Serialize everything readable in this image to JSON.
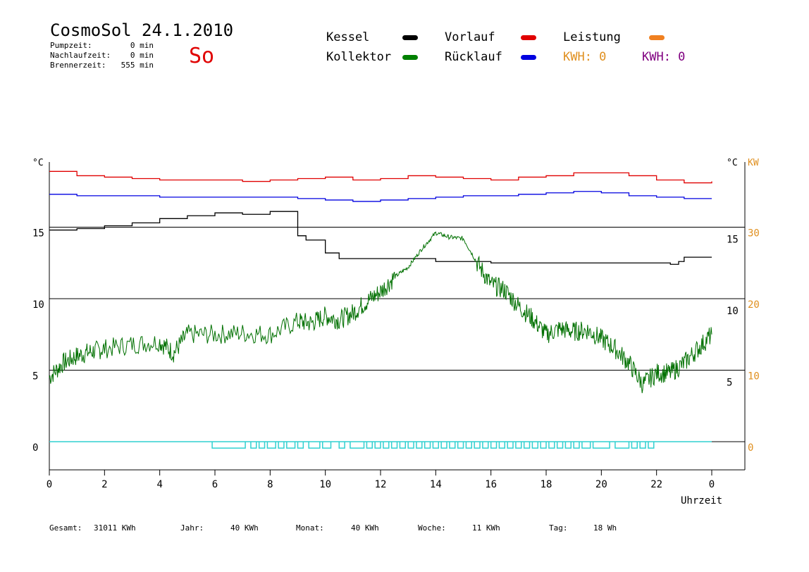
{
  "header": {
    "title": "CosmoSol 24.1.2010",
    "day_label": "So",
    "stats": [
      {
        "label": "Pumpzeit:",
        "value": "0 min"
      },
      {
        "label": "Nachlaufzeit:",
        "value": "0 min"
      },
      {
        "label": "Brennerzeit:",
        "value": "555 min"
      }
    ]
  },
  "legend": {
    "kessel": {
      "label": "Kessel",
      "color": "#000000"
    },
    "kollektor": {
      "label": "Kollektor",
      "color": "#008000"
    },
    "vorlauf": {
      "label": "Vorlauf",
      "color": "#e00000"
    },
    "ruecklauf": {
      "label": "Rücklauf",
      "color": "#0000e0"
    },
    "leistung": {
      "label": "Leistung",
      "color": "#f08020"
    },
    "kwh1": {
      "text": "KWH: 0",
      "color": "#e09020"
    },
    "kwh2": {
      "text": "KWH: 0",
      "color": "#800080"
    }
  },
  "footer": [
    {
      "label": "Gesamt:",
      "value": "31011 KWh"
    },
    {
      "label": "Jahr:",
      "value": "40 KWh"
    },
    {
      "label": "Monat:",
      "value": "40 KWh"
    },
    {
      "label": "Woche:",
      "value": "11 KWh"
    },
    {
      "label": "Tag:",
      "value": "18 Wh"
    }
  ],
  "chart_data": {
    "type": "line",
    "xlabel": "Uhrzeit",
    "x_ticks": [
      "0",
      "2",
      "4",
      "6",
      "8",
      "10",
      "12",
      "14",
      "16",
      "18",
      "20",
      "22",
      "0"
    ],
    "xlim": [
      0,
      24
    ],
    "y_left": {
      "unit": "°C",
      "ticks": [
        "0",
        "5",
        "10",
        "15"
      ],
      "ylim": [
        -1.5,
        20
      ]
    },
    "y_right": {
      "unit": "°C",
      "ticks": [
        "5",
        "10",
        "15"
      ]
    },
    "y_right_kw": {
      "unit": "KW",
      "ticks": [
        "0",
        "10",
        "20",
        "30"
      ],
      "color": "#e09020"
    },
    "gridlines_y": [
      0,
      5,
      10,
      15
    ],
    "series": [
      {
        "name": "Vorlauf",
        "color": "#e00000",
        "x": [
          0,
          1,
          2,
          3,
          4,
          5,
          6,
          7,
          8,
          9,
          10,
          11,
          12,
          13,
          14,
          15,
          16,
          17,
          18,
          19,
          20,
          21,
          22,
          23,
          24
        ],
        "y": [
          18.9,
          18.6,
          18.5,
          18.4,
          18.3,
          18.3,
          18.3,
          18.2,
          18.3,
          18.4,
          18.5,
          18.3,
          18.4,
          18.6,
          18.5,
          18.4,
          18.3,
          18.5,
          18.6,
          18.8,
          18.8,
          18.6,
          18.3,
          18.1,
          18.2
        ]
      },
      {
        "name": "Rücklauf",
        "color": "#0000e0",
        "x": [
          0,
          1,
          2,
          3,
          4,
          5,
          6,
          7,
          8,
          9,
          10,
          11,
          12,
          13,
          14,
          15,
          16,
          17,
          18,
          19,
          20,
          21,
          22,
          23,
          24
        ],
        "y": [
          17.3,
          17.2,
          17.2,
          17.2,
          17.1,
          17.1,
          17.1,
          17.1,
          17.1,
          17.0,
          16.9,
          16.8,
          16.9,
          17.0,
          17.1,
          17.2,
          17.2,
          17.3,
          17.4,
          17.5,
          17.4,
          17.2,
          17.1,
          17.0,
          17.0
        ]
      },
      {
        "name": "Kessel",
        "color": "#000000",
        "x": [
          0,
          1,
          2,
          3,
          4,
          5,
          6,
          7,
          8,
          8.6,
          9.0,
          9.3,
          10,
          10.5,
          11,
          12,
          13,
          14,
          15,
          16,
          17,
          18,
          19,
          20,
          21,
          22,
          22.5,
          22.8,
          23,
          24
        ],
        "y": [
          14.8,
          14.9,
          15.1,
          15.3,
          15.6,
          15.8,
          16.0,
          15.9,
          16.1,
          16.1,
          14.4,
          14.1,
          13.2,
          12.8,
          12.8,
          12.8,
          12.8,
          12.6,
          12.6,
          12.5,
          12.5,
          12.5,
          12.5,
          12.5,
          12.5,
          12.5,
          12.4,
          12.6,
          12.9,
          12.9
        ]
      },
      {
        "name": "Kollektor",
        "color": "#007000",
        "x": [
          0,
          0.5,
          1,
          1.5,
          2,
          3,
          4,
          4.5,
          5,
          6,
          7,
          8,
          9,
          9.5,
          10,
          10.5,
          11,
          11.5,
          12,
          12.5,
          13,
          13.5,
          14,
          14.5,
          15,
          15.5,
          16,
          16.5,
          17,
          17.5,
          18,
          18.5,
          19,
          19.5,
          20,
          20.5,
          21,
          21.5,
          22,
          22.5,
          23,
          23.5,
          24
        ],
        "y": [
          4.5,
          5.5,
          6.0,
          6.3,
          6.5,
          6.8,
          7.0,
          6.2,
          7.5,
          7.5,
          7.6,
          7.5,
          8.4,
          8.3,
          8.8,
          8.5,
          9.0,
          9.8,
          10.5,
          11.5,
          12.2,
          13.5,
          14.6,
          14.3,
          14.2,
          12.5,
          11.0,
          10.6,
          9.5,
          8.6,
          7.5,
          7.9,
          7.7,
          7.8,
          7.2,
          6.5,
          5.5,
          4.0,
          4.8,
          4.8,
          5.5,
          6.5,
          7.5
        ]
      }
    ],
    "leistung_step": {
      "name": "Leistung",
      "color": "#30d0d0",
      "segments": [
        [
          5.9,
          7.1
        ],
        [
          7.3,
          7.5
        ],
        [
          7.6,
          7.8
        ],
        [
          7.9,
          8.2
        ],
        [
          8.3,
          8.5
        ],
        [
          8.6,
          8.9
        ],
        [
          9.0,
          9.2
        ],
        [
          9.4,
          9.8
        ],
        [
          9.9,
          10.2
        ],
        [
          10.5,
          10.7
        ],
        [
          10.9,
          11.4
        ],
        [
          11.5,
          11.7
        ],
        [
          11.8,
          12.0
        ],
        [
          12.1,
          12.3
        ],
        [
          12.4,
          12.6
        ],
        [
          12.7,
          12.9
        ],
        [
          13.0,
          13.2
        ],
        [
          13.3,
          13.5
        ],
        [
          13.6,
          13.8
        ],
        [
          13.9,
          14.1
        ],
        [
          14.2,
          14.4
        ],
        [
          14.5,
          14.7
        ],
        [
          14.8,
          15.0
        ],
        [
          15.1,
          15.3
        ],
        [
          15.4,
          15.6
        ],
        [
          15.7,
          15.9
        ],
        [
          16.0,
          16.2
        ],
        [
          16.3,
          16.5
        ],
        [
          16.6,
          16.8
        ],
        [
          16.9,
          17.1
        ],
        [
          17.2,
          17.4
        ],
        [
          17.5,
          17.7
        ],
        [
          17.8,
          18.0
        ],
        [
          18.1,
          18.3
        ],
        [
          18.4,
          18.6
        ],
        [
          18.7,
          18.9
        ],
        [
          19.0,
          19.2
        ],
        [
          19.3,
          19.6
        ],
        [
          19.7,
          20.3
        ],
        [
          20.5,
          21.0
        ],
        [
          21.1,
          21.3
        ],
        [
          21.4,
          21.6
        ],
        [
          21.7,
          21.9
        ]
      ],
      "level": -0.45
    }
  }
}
